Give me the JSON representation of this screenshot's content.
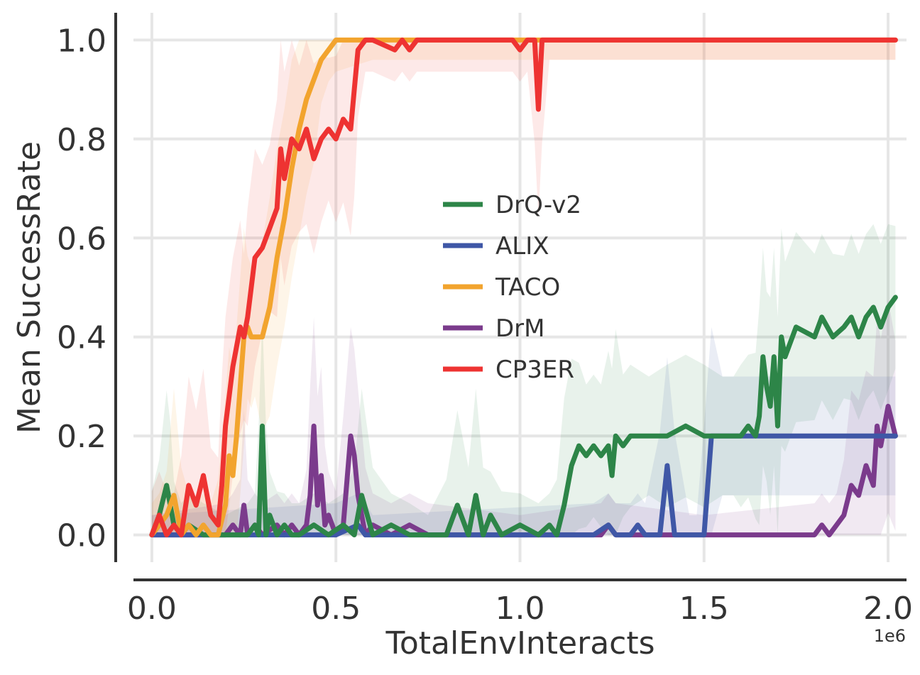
{
  "chart_data": {
    "type": "line",
    "title": "",
    "xlabel": "TotalEnvInteracts",
    "ylabel": "Mean SuccessRate",
    "x_exponent_label": "1e6",
    "xlim": [
      -0.05,
      2.05
    ],
    "ylim": [
      -0.055,
      1.055
    ],
    "x_ticks": [
      0.0,
      0.5,
      1.0,
      1.5,
      2.0
    ],
    "x_tick_labels": [
      "0.0",
      "0.5",
      "1.0",
      "1.5",
      "2.0"
    ],
    "y_ticks": [
      0.0,
      0.2,
      0.4,
      0.6,
      0.8,
      1.0
    ],
    "y_tick_labels": [
      "0.0",
      "0.2",
      "0.4",
      "0.6",
      "0.8",
      "1.0"
    ],
    "grid": true,
    "legend_position": "center",
    "series": [
      {
        "name": "DrQ-v2",
        "color": "#2d8548",
        "x": [
          0.0,
          0.02,
          0.04,
          0.05,
          0.06,
          0.08,
          0.1,
          0.14,
          0.2,
          0.26,
          0.28,
          0.29,
          0.3,
          0.31,
          0.32,
          0.34,
          0.36,
          0.38,
          0.4,
          0.44,
          0.48,
          0.52,
          0.55,
          0.57,
          0.6,
          0.65,
          0.7,
          0.75,
          0.8,
          0.83,
          0.86,
          0.88,
          0.9,
          0.92,
          0.95,
          1.0,
          1.05,
          1.08,
          1.1,
          1.12,
          1.14,
          1.16,
          1.18,
          1.2,
          1.22,
          1.24,
          1.25,
          1.26,
          1.28,
          1.3,
          1.35,
          1.4,
          1.45,
          1.5,
          1.55,
          1.58,
          1.6,
          1.62,
          1.64,
          1.65,
          1.66,
          1.67,
          1.68,
          1.69,
          1.7,
          1.71,
          1.72,
          1.75,
          1.8,
          1.82,
          1.85,
          1.88,
          1.9,
          1.92,
          1.94,
          1.96,
          1.98,
          2.0,
          2.02
        ],
        "y": [
          0.0,
          0.04,
          0.1,
          0.06,
          0.02,
          0.0,
          0.02,
          0.0,
          0.0,
          0.0,
          0.02,
          0.0,
          0.22,
          0.0,
          0.04,
          0.0,
          0.02,
          0.0,
          0.0,
          0.02,
          0.0,
          0.02,
          0.0,
          0.08,
          0.0,
          0.02,
          0.0,
          0.0,
          0.0,
          0.06,
          0.0,
          0.08,
          0.0,
          0.04,
          0.0,
          0.02,
          0.0,
          0.02,
          0.0,
          0.06,
          0.14,
          0.18,
          0.16,
          0.18,
          0.16,
          0.18,
          0.12,
          0.2,
          0.18,
          0.2,
          0.2,
          0.2,
          0.22,
          0.2,
          0.2,
          0.2,
          0.2,
          0.22,
          0.2,
          0.24,
          0.36,
          0.3,
          0.26,
          0.36,
          0.22,
          0.4,
          0.36,
          0.42,
          0.4,
          0.44,
          0.4,
          0.42,
          0.44,
          0.4,
          0.44,
          0.46,
          0.42,
          0.46,
          0.48
        ]
      },
      {
        "name": "ALIX",
        "color": "#3f57a6",
        "x": [
          0.0,
          0.5,
          0.56,
          0.58,
          0.6,
          1.2,
          1.24,
          1.26,
          1.3,
          1.32,
          1.34,
          1.38,
          1.4,
          1.42,
          1.46,
          1.48,
          1.5,
          1.52,
          1.55,
          1.6,
          1.7,
          1.8,
          1.9,
          2.0,
          2.02
        ],
        "y": [
          0.0,
          0.0,
          0.02,
          0.0,
          0.0,
          0.0,
          0.02,
          0.0,
          0.0,
          0.02,
          0.0,
          0.0,
          0.14,
          0.0,
          0.0,
          0.0,
          0.0,
          0.2,
          0.2,
          0.2,
          0.2,
          0.2,
          0.2,
          0.2,
          0.2
        ]
      },
      {
        "name": "TACO",
        "color": "#f2a42e",
        "x": [
          0.0,
          0.02,
          0.04,
          0.06,
          0.08,
          0.1,
          0.12,
          0.14,
          0.16,
          0.18,
          0.2,
          0.21,
          0.22,
          0.23,
          0.24,
          0.25,
          0.26,
          0.27,
          0.28,
          0.3,
          0.32,
          0.34,
          0.36,
          0.38,
          0.4,
          0.42,
          0.44,
          0.46,
          0.48,
          0.5,
          0.6,
          0.8,
          1.0,
          1.2,
          1.4,
          1.6,
          1.8,
          2.0,
          2.02
        ],
        "y": [
          0.0,
          0.02,
          0.04,
          0.08,
          0.0,
          0.02,
          0.0,
          0.02,
          0.0,
          0.0,
          0.06,
          0.16,
          0.12,
          0.2,
          0.3,
          0.4,
          0.42,
          0.4,
          0.4,
          0.4,
          0.46,
          0.56,
          0.64,
          0.74,
          0.82,
          0.88,
          0.92,
          0.96,
          0.98,
          1.0,
          1.0,
          1.0,
          1.0,
          1.0,
          1.0,
          1.0,
          1.0,
          1.0,
          1.0
        ]
      },
      {
        "name": "DrM",
        "color": "#7b3b8c",
        "x": [
          0.0,
          0.2,
          0.22,
          0.24,
          0.25,
          0.26,
          0.28,
          0.3,
          0.34,
          0.36,
          0.38,
          0.4,
          0.42,
          0.43,
          0.44,
          0.45,
          0.46,
          0.47,
          0.48,
          0.5,
          0.52,
          0.54,
          0.55,
          0.56,
          0.58,
          0.6,
          0.65,
          0.7,
          0.75,
          1.0,
          1.22,
          1.24,
          1.26,
          1.5,
          1.8,
          1.82,
          1.84,
          1.86,
          1.88,
          1.9,
          1.92,
          1.94,
          1.96,
          1.97,
          1.98,
          2.0,
          2.02
        ],
        "y": [
          0.0,
          0.0,
          0.02,
          0.0,
          0.06,
          0.0,
          0.02,
          0.0,
          0.02,
          0.0,
          0.02,
          0.0,
          0.02,
          0.08,
          0.22,
          0.06,
          0.12,
          0.02,
          0.04,
          0.0,
          0.02,
          0.2,
          0.16,
          0.08,
          0.0,
          0.02,
          0.0,
          0.02,
          0.0,
          0.0,
          0.0,
          0.02,
          0.0,
          0.0,
          0.0,
          0.02,
          0.0,
          0.02,
          0.04,
          0.1,
          0.08,
          0.14,
          0.1,
          0.22,
          0.18,
          0.26,
          0.2
        ]
      },
      {
        "name": "CP3ER",
        "color": "#ee3332",
        "x": [
          0.0,
          0.02,
          0.04,
          0.06,
          0.08,
          0.1,
          0.12,
          0.14,
          0.16,
          0.18,
          0.19,
          0.2,
          0.22,
          0.24,
          0.25,
          0.26,
          0.28,
          0.3,
          0.32,
          0.34,
          0.35,
          0.36,
          0.38,
          0.4,
          0.42,
          0.44,
          0.46,
          0.48,
          0.5,
          0.52,
          0.54,
          0.55,
          0.56,
          0.58,
          0.6,
          0.66,
          0.68,
          0.7,
          0.72,
          0.98,
          1.0,
          1.02,
          1.04,
          1.05,
          1.06,
          1.08,
          1.1,
          1.3,
          1.5,
          1.7,
          1.9,
          2.0,
          2.02
        ],
        "y": [
          0.0,
          0.04,
          0.0,
          0.02,
          0.0,
          0.1,
          0.06,
          0.12,
          0.04,
          0.02,
          0.1,
          0.22,
          0.34,
          0.42,
          0.4,
          0.44,
          0.56,
          0.58,
          0.62,
          0.66,
          0.78,
          0.72,
          0.8,
          0.78,
          0.82,
          0.76,
          0.8,
          0.82,
          0.8,
          0.84,
          0.82,
          0.9,
          0.98,
          1.0,
          1.0,
          0.98,
          1.0,
          0.98,
          1.0,
          1.0,
          0.98,
          1.0,
          1.0,
          0.86,
          1.0,
          1.0,
          1.0,
          1.0,
          1.0,
          1.0,
          1.0,
          1.0,
          1.0
        ]
      }
    ]
  }
}
